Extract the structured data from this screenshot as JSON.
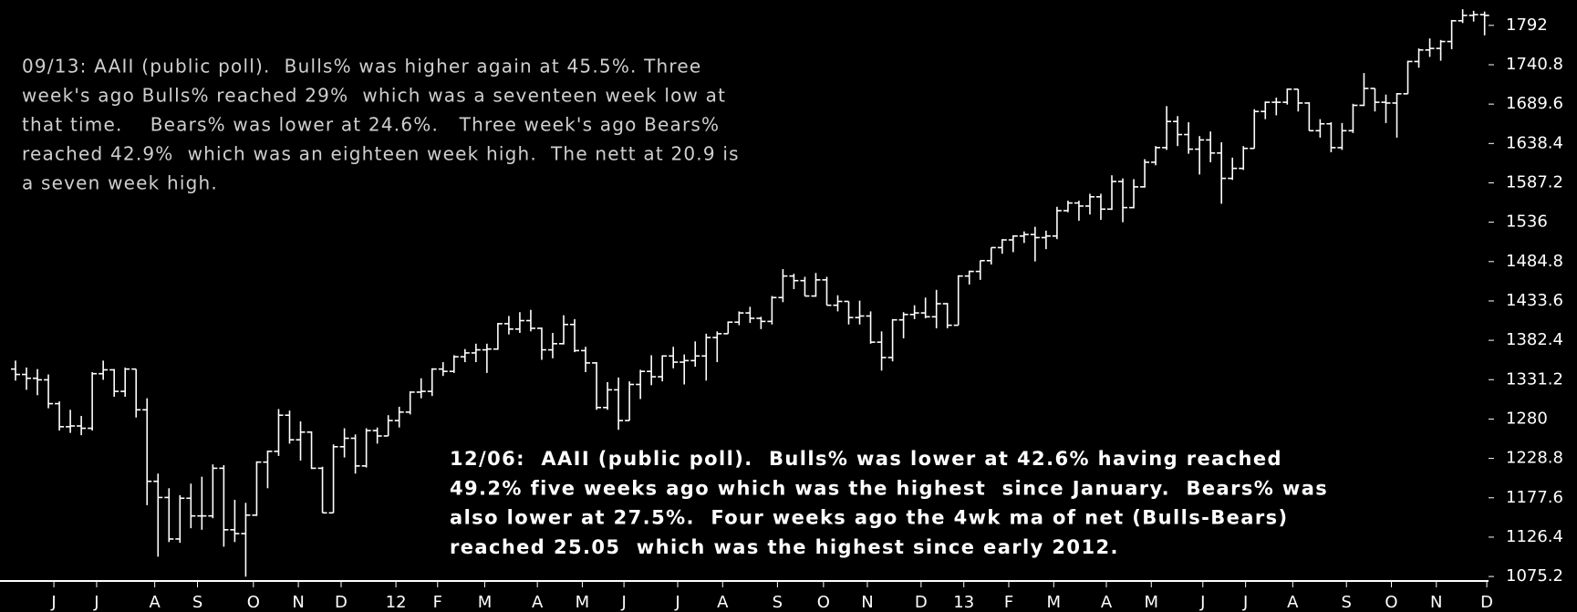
{
  "chart_data": {
    "type": "ohlc",
    "color": "#ffffff",
    "open": [
      1345,
      1338,
      1333,
      1331,
      1300,
      1270,
      1271,
      1268,
      1339,
      1344,
      1316,
      1345,
      1292,
      1199,
      1178,
      1124,
      1177,
      1154,
      1154,
      1216,
      1136,
      1131,
      1155,
      1224,
      1238,
      1285,
      1253,
      1263,
      1216,
      1158,
      1244,
      1255,
      1219,
      1265,
      1258,
      1278,
      1289,
      1315,
      1316,
      1345,
      1342,
      1361,
      1366,
      1370,
      1371,
      1404,
      1397,
      1408,
      1398,
      1370,
      1378,
      1403,
      1369,
      1353,
      1295,
      1318,
      1278,
      1325,
      1342,
      1335,
      1362,
      1354,
      1356,
      1362,
      1386,
      1391,
      1406,
      1418,
      1411,
      1407,
      1438,
      1466,
      1460,
      1440,
      1461,
      1428,
      1433,
      1412,
      1414,
      1380,
      1360,
      1409,
      1416,
      1418,
      1413,
      1430,
      1402,
      1466,
      1472,
      1486,
      1503,
      1513,
      1518,
      1520,
      1516,
      1518,
      1551,
      1561,
      1557,
      1569,
      1553,
      1589,
      1555,
      1582,
      1614,
      1633,
      1667,
      1650,
      1631,
      1643,
      1626,
      1593,
      1606,
      1632,
      1680,
      1692,
      1692,
      1709,
      1691,
      1655,
      1664,
      1633,
      1655,
      1688,
      1710,
      1692,
      1691,
      1703,
      1745,
      1760,
      1762,
      1771,
      1798,
      1805,
      1806
    ],
    "high": [
      1356,
      1347,
      1345,
      1338,
      1303,
      1292,
      1284,
      1341,
      1356,
      1345,
      1347,
      1345,
      1307,
      1209,
      1190,
      1181,
      1196,
      1205,
      1221,
      1220,
      1175,
      1171,
      1225,
      1239,
      1293,
      1291,
      1277,
      1264,
      1218,
      1247,
      1268,
      1260,
      1268,
      1269,
      1285,
      1296,
      1316,
      1333,
      1346,
      1354,
      1363,
      1371,
      1378,
      1378,
      1405,
      1414,
      1419,
      1422,
      1399,
      1392,
      1415,
      1410,
      1374,
      1354,
      1328,
      1334,
      1329,
      1344,
      1363,
      1363,
      1374,
      1364,
      1381,
      1391,
      1394,
      1407,
      1420,
      1426,
      1413,
      1440,
      1475,
      1469,
      1465,
      1470,
      1465,
      1441,
      1433,
      1434,
      1420,
      1394,
      1410,
      1419,
      1428,
      1438,
      1448,
      1431,
      1467,
      1473,
      1486,
      1503,
      1514,
      1519,
      1524,
      1530,
      1525,
      1556,
      1564,
      1564,
      1573,
      1573,
      1597,
      1593,
      1592,
      1618,
      1635,
      1687,
      1674,
      1666,
      1648,
      1654,
      1640,
      1620,
      1635,
      1683,
      1693,
      1698,
      1710,
      1709,
      1692,
      1670,
      1666,
      1665,
      1690,
      1730,
      1710,
      1702,
      1704,
      1746,
      1762,
      1775,
      1773,
      1799,
      1813,
      1811,
      1810
    ],
    "low": [
      1330,
      1318,
      1311,
      1294,
      1265,
      1262,
      1259,
      1265,
      1331,
      1309,
      1309,
      1282,
      1168,
      1101,
      1120,
      1119,
      1138,
      1136,
      1151,
      1114,
      1120,
      1075,
      1154,
      1190,
      1232,
      1248,
      1226,
      1215,
      1158,
      1158,
      1230,
      1209,
      1217,
      1248,
      1258,
      1269,
      1286,
      1307,
      1310,
      1336,
      1340,
      1354,
      1354,
      1340,
      1370,
      1390,
      1392,
      1394,
      1357,
      1359,
      1377,
      1367,
      1341,
      1292,
      1292,
      1266,
      1278,
      1306,
      1324,
      1329,
      1346,
      1325,
      1348,
      1330,
      1354,
      1391,
      1402,
      1405,
      1397,
      1403,
      1432,
      1449,
      1440,
      1439,
      1428,
      1420,
      1403,
      1403,
      1378,
      1343,
      1355,
      1385,
      1410,
      1411,
      1398,
      1398,
      1402,
      1455,
      1461,
      1481,
      1495,
      1497,
      1509,
      1485,
      1501,
      1514,
      1549,
      1538,
      1546,
      1539,
      1552,
      1536,
      1554,
      1581,
      1610,
      1630,
      1635,
      1625,
      1598,
      1614,
      1560,
      1591,
      1604,
      1632,
      1670,
      1675,
      1689,
      1680,
      1655,
      1646,
      1627,
      1630,
      1652,
      1687,
      1680,
      1665,
      1646,
      1703,
      1737,
      1751,
      1746,
      1761,
      1795,
      1797,
      1779
    ],
    "close": [
      1338,
      1333,
      1331,
      1300,
      1270,
      1271,
      1268,
      1339,
      1344,
      1316,
      1345,
      1292,
      1199,
      1178,
      1124,
      1177,
      1154,
      1154,
      1216,
      1136,
      1131,
      1155,
      1224,
      1238,
      1285,
      1253,
      1263,
      1216,
      1158,
      1244,
      1255,
      1219,
      1265,
      1258,
      1278,
      1289,
      1315,
      1316,
      1345,
      1342,
      1361,
      1366,
      1370,
      1371,
      1404,
      1397,
      1408,
      1398,
      1370,
      1378,
      1403,
      1369,
      1353,
      1295,
      1318,
      1278,
      1325,
      1342,
      1335,
      1362,
      1354,
      1356,
      1362,
      1386,
      1391,
      1406,
      1418,
      1411,
      1407,
      1438,
      1466,
      1460,
      1440,
      1461,
      1428,
      1433,
      1412,
      1414,
      1380,
      1360,
      1409,
      1416,
      1418,
      1413,
      1430,
      1402,
      1466,
      1472,
      1486,
      1503,
      1513,
      1518,
      1520,
      1516,
      1518,
      1551,
      1561,
      1557,
      1569,
      1553,
      1589,
      1555,
      1582,
      1614,
      1633,
      1667,
      1650,
      1631,
      1643,
      1626,
      1593,
      1606,
      1632,
      1680,
      1692,
      1692,
      1709,
      1691,
      1655,
      1664,
      1633,
      1655,
      1688,
      1710,
      1692,
      1691,
      1703,
      1745,
      1760,
      1762,
      1771,
      1798,
      1805,
      1806,
      1805
    ],
    "ylim": [
      1067,
      1825
    ],
    "yticks": [
      1075.2,
      1126.4,
      1177.6,
      1228.8,
      1280,
      1331.2,
      1382.4,
      1433.6,
      1484.8,
      1536,
      1587.2,
      1638.4,
      1689.6,
      1740.8,
      1792
    ],
    "xticks": [
      {
        "value": 3.5,
        "label": "J"
      },
      {
        "value": 7.4,
        "label": "J"
      },
      {
        "value": 12.7,
        "label": "A"
      },
      {
        "value": 16.6,
        "label": "S"
      },
      {
        "value": 21.7,
        "label": "O"
      },
      {
        "value": 25.8,
        "label": "N"
      },
      {
        "value": 29.7,
        "label": "D"
      },
      {
        "value": 34.7,
        "label": "12"
      },
      {
        "value": 38.5,
        "label": "F"
      },
      {
        "value": 42.8,
        "label": "M"
      },
      {
        "value": 47.6,
        "label": "A"
      },
      {
        "value": 51.7,
        "label": "M"
      },
      {
        "value": 55.5,
        "label": "J"
      },
      {
        "value": 60.4,
        "label": "J"
      },
      {
        "value": 64.5,
        "label": "A"
      },
      {
        "value": 69.5,
        "label": "S"
      },
      {
        "value": 73.7,
        "label": "O"
      },
      {
        "value": 77.7,
        "label": "N"
      },
      {
        "value": 82.6,
        "label": "D"
      },
      {
        "value": 86.5,
        "label": "13"
      },
      {
        "value": 90.6,
        "label": "F"
      },
      {
        "value": 94.7,
        "label": "M"
      },
      {
        "value": 99.5,
        "label": "A"
      },
      {
        "value": 103.6,
        "label": "M"
      },
      {
        "value": 108.3,
        "label": "J"
      },
      {
        "value": 112.2,
        "label": "J"
      },
      {
        "value": 116.5,
        "label": "A"
      },
      {
        "value": 121.4,
        "label": "S"
      },
      {
        "value": 125.5,
        "label": "O"
      },
      {
        "value": 129.6,
        "label": "N"
      },
      {
        "value": 134.2,
        "label": "D"
      }
    ],
    "annotations": [
      {
        "lines": [
          "09/13: AAII (public poll).  Bulls% was higher again at 45.5%. Three",
          "week's ago Bulls% reached 29%  which was a seventeen week low at",
          "that time.    Bears% was lower at 24.6%.   Three week's ago Bears%",
          "reached 42.9%  which was an eighteen week high.  The nett at 20.9 is",
          "a seven week high."
        ]
      },
      {
        "lines": [
          "12/06:  AAII (public poll).  Bulls% was lower at 42.6% having reached",
          "49.2% five weeks ago which was the highest  since January.  Bears% was",
          "also lower at 27.5%.  Four weeks ago the 4wk ma of net (Bulls-Bears)",
          "reached 25.05  which was the highest since early 2012."
        ]
      }
    ]
  }
}
